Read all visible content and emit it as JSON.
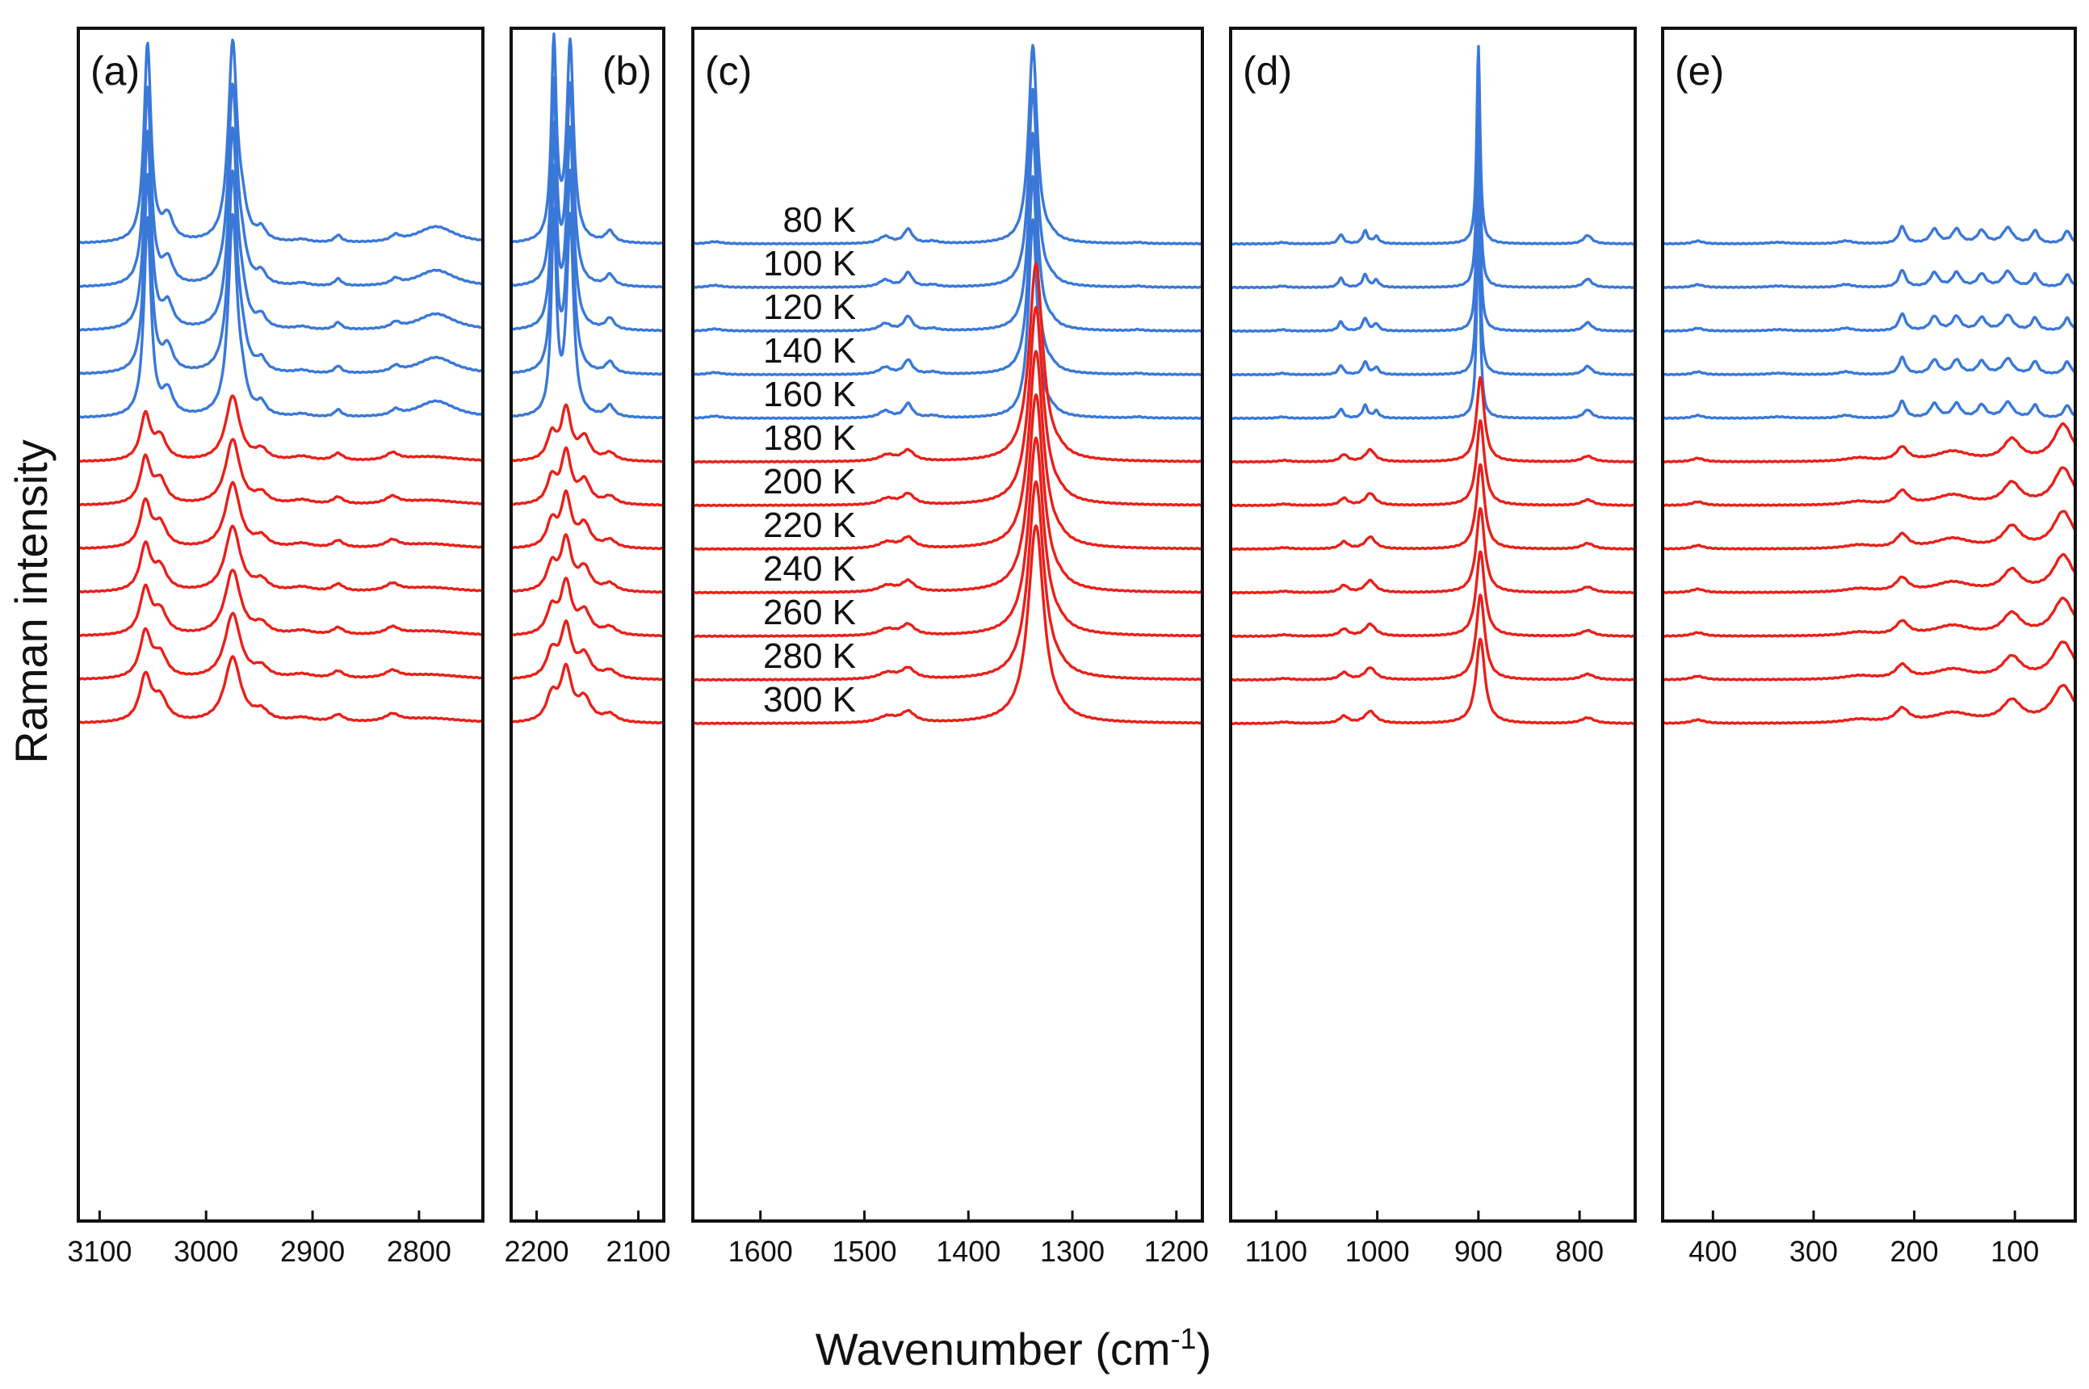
{
  "chart_data": {
    "type": "line",
    "title": "",
    "xlabel": "Wavenumber (cm",
    "xlabel_superscript": "-1",
    "xlabel_suffix": ")",
    "ylabel": "Raman intensity",
    "temperatures": [
      "80 K",
      "100 K",
      "120 K",
      "140 K",
      "160 K",
      "180 K",
      "200 K",
      "220 K",
      "240 K",
      "260 K",
      "280 K",
      "300 K"
    ],
    "series_colors": {
      "low_temperature": "#3a78d8",
      "high_temperature": "#e8201a"
    },
    "low_temperature_count": 5,
    "panels": [
      {
        "label": "(a)",
        "xlim": [
          3120,
          2740
        ],
        "ticks": [
          3100,
          3000,
          2900,
          2800
        ],
        "peaks_low": [
          {
            "x": 3055,
            "h": 14,
            "w": 4
          },
          {
            "x": 3036,
            "h": 1.7,
            "w": 6
          },
          {
            "x": 2975,
            "h": 14,
            "w": 5
          },
          {
            "x": 2966,
            "h": 1.4,
            "w": 5
          },
          {
            "x": 2948,
            "h": 0.8,
            "w": 5
          },
          {
            "x": 2910,
            "h": 0.2,
            "w": 8
          },
          {
            "x": 2876,
            "h": 0.5,
            "w": 4
          },
          {
            "x": 2822,
            "h": 0.4,
            "w": 5
          },
          {
            "x": 2784,
            "h": 1.2,
            "w": 22
          }
        ],
        "peaks_high": [
          {
            "x": 3057,
            "h": 3.2,
            "w": 5
          },
          {
            "x": 3043,
            "h": 1.6,
            "w": 6
          },
          {
            "x": 2975,
            "h": 4.6,
            "w": 7
          },
          {
            "x": 2948,
            "h": 0.7,
            "w": 6
          },
          {
            "x": 2910,
            "h": 0.3,
            "w": 10
          },
          {
            "x": 2876,
            "h": 0.5,
            "w": 5
          },
          {
            "x": 2825,
            "h": 0.5,
            "w": 6
          },
          {
            "x": 2790,
            "h": 0.35,
            "w": 30
          }
        ]
      },
      {
        "label": "(b)",
        "xlim": [
          2225,
          2075
        ],
        "ticks": [
          2200,
          2100
        ],
        "peaks_low": [
          {
            "x": 2183,
            "h": 14,
            "w": 3
          },
          {
            "x": 2167,
            "h": 14,
            "w": 4
          },
          {
            "x": 2128,
            "h": 0.8,
            "w": 5
          }
        ],
        "peaks_high": [
          {
            "x": 2185,
            "h": 1.8,
            "w": 5
          },
          {
            "x": 2171,
            "h": 3.6,
            "w": 5
          },
          {
            "x": 2153,
            "h": 1.6,
            "w": 6
          },
          {
            "x": 2128,
            "h": 0.55,
            "w": 6
          }
        ]
      },
      {
        "label": "(c)",
        "xlim": [
          1665,
          1175
        ],
        "ticks": [
          1600,
          1500,
          1400,
          1300,
          1200
        ],
        "peaks_low": [
          {
            "x": 1644,
            "h": 0.15,
            "w": 8
          },
          {
            "x": 1480,
            "h": 0.5,
            "w": 7
          },
          {
            "x": 1458,
            "h": 1.0,
            "w": 5
          },
          {
            "x": 1434,
            "h": 0.15,
            "w": 6
          },
          {
            "x": 1338,
            "h": 14,
            "w": 5
          },
          {
            "x": 1320,
            "h": 0.25,
            "w": 6
          },
          {
            "x": 1237,
            "h": 0.08,
            "w": 6
          }
        ],
        "peaks_high": [
          {
            "x": 1478,
            "h": 0.45,
            "w": 8
          },
          {
            "x": 1458,
            "h": 0.75,
            "w": 6
          },
          {
            "x": 1335,
            "h": 14,
            "w": 7
          },
          {
            "x": 1312,
            "h": 0.2,
            "w": 6
          }
        ]
      },
      {
        "label": "(d)",
        "xlim": [
          1145,
          745
        ],
        "ticks": [
          1100,
          1000,
          900,
          800
        ],
        "peaks_low": [
          {
            "x": 1094,
            "h": 0.1,
            "w": 5
          },
          {
            "x": 1036,
            "h": 0.65,
            "w": 3
          },
          {
            "x": 1012,
            "h": 0.9,
            "w": 3
          },
          {
            "x": 1001,
            "h": 0.5,
            "w": 3
          },
          {
            "x": 900,
            "h": 14,
            "w": 2
          },
          {
            "x": 792,
            "h": 0.6,
            "w": 5
          }
        ],
        "peaks_high": [
          {
            "x": 1092,
            "h": 0.1,
            "w": 6
          },
          {
            "x": 1033,
            "h": 0.5,
            "w": 4
          },
          {
            "x": 1007,
            "h": 0.85,
            "w": 5
          },
          {
            "x": 898,
            "h": 6,
            "w": 4
          },
          {
            "x": 792,
            "h": 0.4,
            "w": 6
          }
        ]
      },
      {
        "label": "(e)",
        "xlim": [
          450,
          40
        ],
        "ticks": [
          400,
          300,
          200,
          100
        ],
        "peaks_low": [
          {
            "x": 415,
            "h": 0.2,
            "w": 6
          },
          {
            "x": 335,
            "h": 0.1,
            "w": 12
          },
          {
            "x": 268,
            "h": 0.2,
            "w": 8
          },
          {
            "x": 212,
            "h": 1.2,
            "w": 4
          },
          {
            "x": 180,
            "h": 1.0,
            "w": 5
          },
          {
            "x": 158,
            "h": 1.0,
            "w": 5
          },
          {
            "x": 133,
            "h": 0.9,
            "w": 5
          },
          {
            "x": 107,
            "h": 1.1,
            "w": 6
          },
          {
            "x": 80,
            "h": 0.9,
            "w": 4
          },
          {
            "x": 48,
            "h": 0.9,
            "w": 4
          }
        ],
        "peaks_high": [
          {
            "x": 415,
            "h": 0.25,
            "w": 6
          },
          {
            "x": 255,
            "h": 0.25,
            "w": 14
          },
          {
            "x": 212,
            "h": 0.95,
            "w": 6
          },
          {
            "x": 162,
            "h": 0.7,
            "w": 18
          },
          {
            "x": 103,
            "h": 1.5,
            "w": 9
          },
          {
            "x": 52,
            "h": 2.6,
            "w": 10
          }
        ]
      }
    ]
  }
}
